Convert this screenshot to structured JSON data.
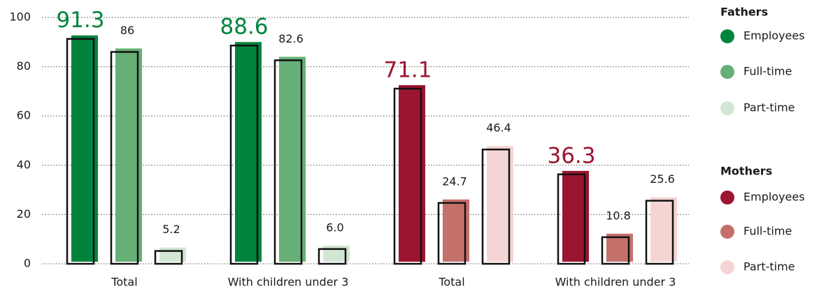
{
  "chart_data": {
    "type": "bar",
    "ylim": [
      0,
      100
    ],
    "yticks": [
      0,
      20,
      40,
      60,
      80,
      100
    ],
    "grid": true,
    "groups": [
      {
        "name": "Fathers",
        "categories": [
          "Total",
          "With children under 3"
        ],
        "series": [
          {
            "name": "Employees",
            "color": "#00843d",
            "values": [
              91.3,
              88.6
            ],
            "value_labels": [
              "91.3",
              "88.6"
            ]
          },
          {
            "name": "Full-time",
            "color": "#66b077",
            "values": [
              86,
              82.6
            ],
            "value_labels": [
              "86",
              "82.6"
            ]
          },
          {
            "name": "Part-time",
            "color": "#d2e6d4",
            "values": [
              5.2,
              6.0
            ],
            "value_labels": [
              "5.2",
              "6.0"
            ]
          }
        ]
      },
      {
        "name": "Mothers",
        "categories": [
          "Total",
          "With children under 3"
        ],
        "series": [
          {
            "name": "Employees",
            "color": "#9b1530",
            "values": [
              71.1,
              36.3
            ],
            "value_labels": [
              "71.1",
              "36.3"
            ]
          },
          {
            "name": "Full-time",
            "color": "#c4706b",
            "values": [
              24.7,
              10.8
            ],
            "value_labels": [
              "24.7",
              "10.8"
            ]
          },
          {
            "name": "Part-time",
            "color": "#f5d5d3",
            "values": [
              46.4,
              25.6
            ],
            "value_labels": [
              "46.4",
              "25.6"
            ]
          }
        ]
      }
    ]
  }
}
